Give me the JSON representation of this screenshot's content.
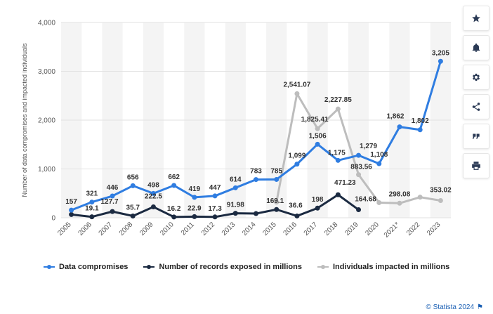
{
  "chart_data": {
    "type": "line",
    "title": "",
    "xlabel": "",
    "ylabel": "Number of data compromises and impacted individuals",
    "ylim": [
      0,
      4000
    ],
    "yticks": [
      0,
      1000,
      2000,
      3000,
      4000
    ],
    "ytick_labels": [
      "0",
      "1,000",
      "2,000",
      "3,000",
      "4,000"
    ],
    "categories": [
      "2005",
      "2006",
      "2007",
      "2008",
      "2009",
      "2010",
      "2011",
      "2012",
      "2013",
      "2014",
      "2015",
      "2016",
      "2017",
      "2018",
      "2019",
      "2020",
      "2021*",
      "2022",
      "2023"
    ],
    "grid": "horizontal",
    "legend_position": "bottom-left",
    "series": [
      {
        "name": "Data compromises",
        "color": "#2f7de1",
        "values": [
          157,
          321,
          446,
          656,
          498,
          662,
          419,
          447,
          614,
          783,
          785,
          1099,
          1506,
          1175,
          1279,
          1108,
          1862,
          1802,
          3205
        ],
        "labels": [
          "157",
          "321",
          "446",
          "656",
          "498",
          "662",
          "419",
          "447",
          "614",
          "783",
          "785",
          "1,099",
          "1,506",
          "1,175",
          "1,279",
          "1,108",
          "1,862",
          "1,802",
          "3,205"
        ]
      },
      {
        "name": "Number of records exposed in millions",
        "color": "#1b2a41",
        "values": [
          66.9,
          19.1,
          127.7,
          35.7,
          222.5,
          16.2,
          22.9,
          17.3,
          91.98,
          85.61,
          169.1,
          36.6,
          198,
          471.23,
          164.68,
          null,
          null,
          null,
          null
        ],
        "labels": [
          null,
          "19.1",
          "127.7",
          "35.7",
          "222.5",
          "16.2",
          "22.9",
          "17.3",
          "91.98",
          null,
          "169.1",
          "36.6",
          "198",
          "471.23",
          "164.68",
          null,
          null,
          null,
          null
        ]
      },
      {
        "name": "Individuals impacted in millions",
        "color": "#bdbdbd",
        "values": [
          null,
          null,
          null,
          null,
          null,
          null,
          null,
          null,
          null,
          null,
          320,
          2541.07,
          1825.41,
          2227.85,
          883.56,
          310,
          298.08,
          422,
          353.02
        ],
        "labels": [
          null,
          null,
          null,
          null,
          null,
          null,
          null,
          null,
          null,
          null,
          null,
          "2,541.07",
          "1,825.41",
          "2,227.85",
          "883.56",
          null,
          "298.08",
          null,
          "353.02"
        ]
      }
    ]
  },
  "toolbar": {
    "buttons": [
      {
        "icon": "star-icon"
      },
      {
        "icon": "bell-icon"
      },
      {
        "icon": "gear-icon"
      },
      {
        "icon": "share-icon"
      },
      {
        "icon": "quote-icon"
      },
      {
        "icon": "print-icon"
      }
    ]
  },
  "credit": {
    "text": "© Statista 2024"
  }
}
